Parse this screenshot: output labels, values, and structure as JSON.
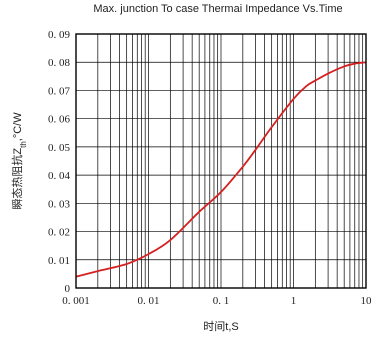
{
  "chart_data": {
    "type": "line",
    "title": "Max. junction To case Thermai Impedance Vs.Time",
    "xlabel": "时间t,S",
    "ylabel": "瞬态热阻抗Z_th,°C/W",
    "ylabel_parts": {
      "prefix": "瞬态热阻抗Z",
      "sub": "th",
      "suffix": ",°C/W"
    },
    "x_scale": "log",
    "xlim": [
      0.001,
      10
    ],
    "ylim": [
      0,
      0.09
    ],
    "grid": true,
    "legend": "none",
    "x_ticks": [
      {
        "value": 0.001,
        "label": "0. 001"
      },
      {
        "value": 0.01,
        "label": "0. 01"
      },
      {
        "value": 0.1,
        "label": "0. 1"
      },
      {
        "value": 1,
        "label": "1"
      },
      {
        "value": 10,
        "label": "10"
      }
    ],
    "y_ticks": [
      {
        "value": 0,
        "label": "0"
      },
      {
        "value": 0.01,
        "label": "0. 01"
      },
      {
        "value": 0.02,
        "label": "0. 02"
      },
      {
        "value": 0.03,
        "label": "0. 03"
      },
      {
        "value": 0.04,
        "label": "0. 04"
      },
      {
        "value": 0.05,
        "label": "0. 05"
      },
      {
        "value": 0.06,
        "label": "0. 06"
      },
      {
        "value": 0.07,
        "label": "0. 07"
      },
      {
        "value": 0.08,
        "label": "0. 08"
      },
      {
        "value": 0.09,
        "label": "0. 09"
      }
    ],
    "series": [
      {
        "color": "#d62020",
        "x": [
          0.001,
          0.002,
          0.005,
          0.01,
          0.02,
          0.05,
          0.1,
          0.2,
          0.3,
          0.5,
          1,
          1.5,
          2,
          3,
          5,
          7,
          10
        ],
        "y": [
          0.004,
          0.006,
          0.0085,
          0.012,
          0.017,
          0.027,
          0.034,
          0.043,
          0.049,
          0.057,
          0.067,
          0.0715,
          0.0735,
          0.076,
          0.0785,
          0.0795,
          0.08
        ]
      }
    ]
  }
}
